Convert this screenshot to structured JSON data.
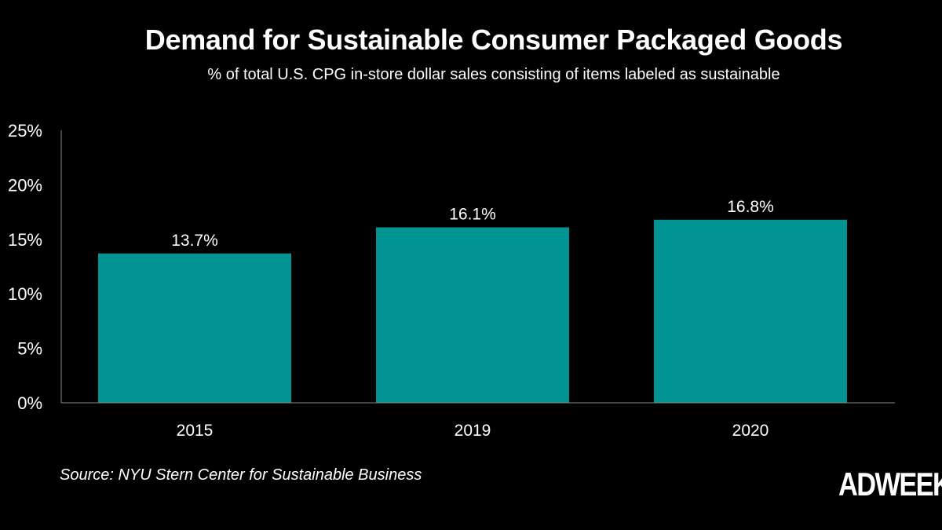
{
  "chart_data": {
    "type": "bar",
    "title": "Demand for Sustainable Consumer Packaged Goods",
    "subtitle": "% of total U.S. CPG in-store dollar sales consisting of items labeled as sustainable",
    "categories": [
      "2015",
      "2019",
      "2020"
    ],
    "values": [
      13.7,
      16.1,
      16.8
    ],
    "data_labels": [
      "13.7%",
      "16.1%",
      "16.8%"
    ],
    "yticks": [
      0,
      5,
      10,
      15,
      20,
      25
    ],
    "ytick_labels": [
      "0%",
      "5%",
      "10%",
      "15%",
      "20%",
      "25%"
    ],
    "ylim": [
      0,
      25
    ],
    "xlabel": "",
    "ylabel": "",
    "grid": false,
    "bar_color": "#029492",
    "background": "#000000"
  },
  "source": "Source: NYU Stern Center for Sustainable Business",
  "logo": "ADWEEK"
}
